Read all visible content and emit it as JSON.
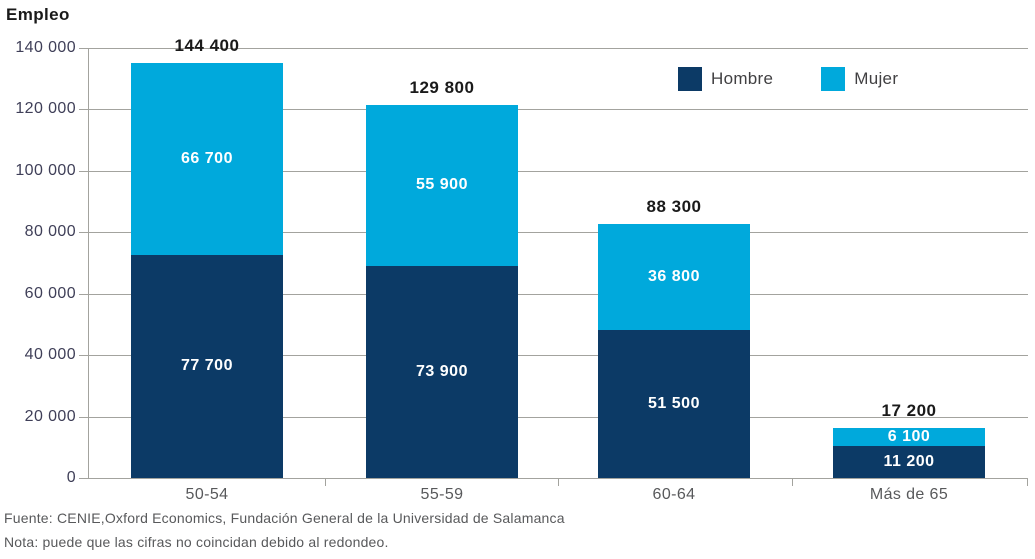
{
  "title": "Empleo",
  "footer": {
    "source": "Fuente: CENIE,Oxford Economics, Fundación General de la Universidad de Salamanca",
    "note": "Nota: puede que las cifras no coincidan debido al redondeo."
  },
  "colors": {
    "hombre": "#0c3a66",
    "mujer": "#00a9dc",
    "grid": "#a3a39e",
    "axis_text": "#3f3f58",
    "category_text": "#58595b"
  },
  "chart_data": {
    "type": "bar",
    "stacked": true,
    "title": "Empleo",
    "ylabel": "Empleo",
    "xlabel": "",
    "grid": true,
    "legend_position": "top-right",
    "categories": [
      "50-54",
      "55-59",
      "60-64",
      "Más de 65"
    ],
    "series": [
      {
        "name": "Hombre",
        "color": "#0c3a66",
        "values": [
          77700,
          73900,
          51500,
          11200
        ],
        "labels": [
          "77 700",
          "73 900",
          "51 500",
          "11 200"
        ]
      },
      {
        "name": "Mujer",
        "color": "#00a9dc",
        "values": [
          66700,
          55900,
          36800,
          6100
        ],
        "labels": [
          "66 700",
          "55 900",
          "36 800",
          "6 100"
        ]
      }
    ],
    "totals": [
      144400,
      129800,
      88300,
      17200
    ],
    "total_labels": [
      "144 400",
      "129 800",
      "88 300",
      "17 200"
    ],
    "y_axis": {
      "max": 140000,
      "ticks": [
        0,
        20000,
        40000,
        60000,
        80000,
        100000,
        120000,
        140000
      ],
      "tick_labels": [
        "0",
        "20 000",
        "40 000",
        "60 000",
        "80 000",
        "100 000",
        "120 000",
        "140 000"
      ]
    }
  }
}
